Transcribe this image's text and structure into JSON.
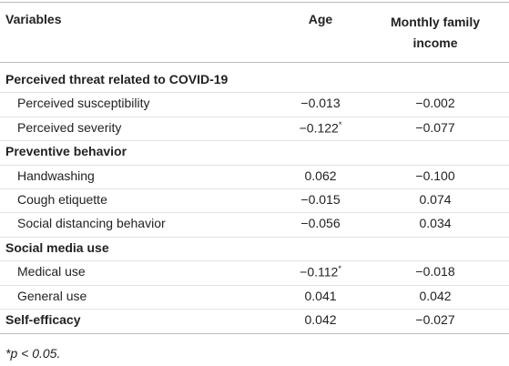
{
  "table": {
    "header": [
      "Variables",
      "Age",
      "Monthly family income"
    ],
    "rows": [
      {
        "section": "Perceived threat related to COVID-19"
      },
      {
        "label": "Perceived susceptibility",
        "cells": [
          "−0.013",
          "−0.002"
        ]
      },
      {
        "label": "Perceived severity",
        "cells": [
          {
            "text": "−0.122",
            "note": "*"
          },
          "−0.077"
        ]
      },
      {
        "section": "Preventive behavior"
      },
      {
        "label": "Handwashing",
        "cells": [
          "0.062",
          "−0.100"
        ]
      },
      {
        "label": "Cough etiquette",
        "cells": [
          "−0.015",
          "0.074"
        ]
      },
      {
        "label": "Social distancing behavior",
        "cells": [
          "−0.056",
          "0.034"
        ]
      },
      {
        "section": "Social media use"
      },
      {
        "label": "Medical use",
        "cells": [
          {
            "text": "−0.112",
            "note": "*"
          },
          "−0.018"
        ]
      },
      {
        "label": "General use",
        "cells": [
          "0.041",
          "0.042"
        ]
      },
      {
        "section": "Self-efficacy",
        "cells": [
          "0.042",
          "−0.027"
        ]
      }
    ],
    "footnote": "*p < 0.05."
  }
}
